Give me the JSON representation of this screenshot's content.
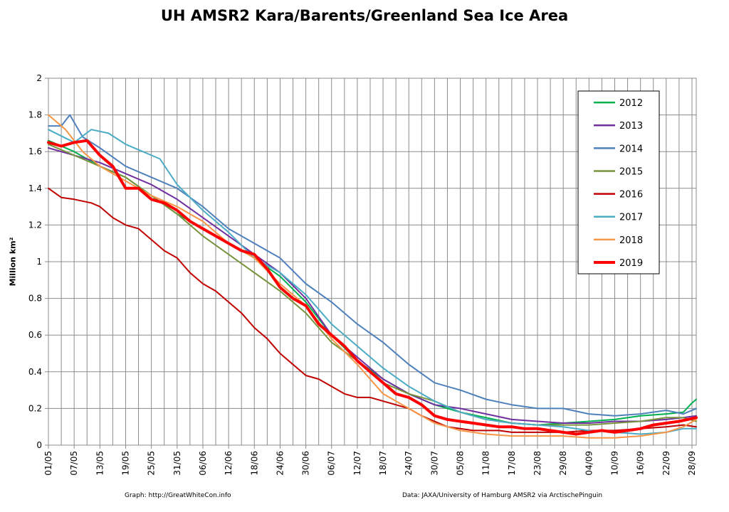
{
  "title": "UH AMSR2 Kara/Barents/Greenland Sea Ice Area",
  "footer_left": "Graph: http://GreatWhiteCon.info",
  "footer_right": "Data: JAXA/University of Hamburg AMSR2 via ArctischePinguin",
  "chart_data": {
    "type": "line",
    "title": "UH AMSR2 Kara/Barents/Greenland Sea Ice Area",
    "ylabel": "Million km²",
    "xlabel": "",
    "ylim": [
      0,
      2
    ],
    "yticks": [
      "0",
      "0.2",
      "0.4",
      "0.6",
      "0.8",
      "1",
      "1.2",
      "1.4",
      "1.6",
      "1.8",
      "2"
    ],
    "x_tick_labels": [
      "01/05",
      "07/05",
      "13/05",
      "19/05",
      "25/05",
      "31/05",
      "06/06",
      "12/06",
      "18/06",
      "24/06",
      "30/06",
      "06/07",
      "12/07",
      "18/07",
      "24/07",
      "30/07",
      "05/08",
      "11/08",
      "17/08",
      "23/08",
      "29/08",
      "04/09",
      "10/09",
      "16/09",
      "22/09",
      "28/09"
    ],
    "x_range_days": [
      0,
      151
    ],
    "grid": true,
    "legend_position": "top-right",
    "series": [
      {
        "name": "2012",
        "color": "#00b050",
        "width": 2,
        "points": [
          [
            0,
            1.66
          ],
          [
            6,
            1.6
          ],
          [
            12,
            1.52
          ],
          [
            18,
            1.46
          ],
          [
            24,
            1.36
          ],
          [
            30,
            1.26
          ],
          [
            36,
            1.18
          ],
          [
            42,
            1.1
          ],
          [
            48,
            1.02
          ],
          [
            54,
            0.92
          ],
          [
            60,
            0.78
          ],
          [
            66,
            0.6
          ],
          [
            72,
            0.46
          ],
          [
            78,
            0.36
          ],
          [
            84,
            0.28
          ],
          [
            90,
            0.22
          ],
          [
            96,
            0.18
          ],
          [
            102,
            0.15
          ],
          [
            108,
            0.12
          ],
          [
            114,
            0.11
          ],
          [
            120,
            0.12
          ],
          [
            126,
            0.13
          ],
          [
            132,
            0.14
          ],
          [
            138,
            0.16
          ],
          [
            144,
            0.17
          ],
          [
            148,
            0.18
          ],
          [
            150,
            0.23
          ],
          [
            151,
            0.25
          ]
        ]
      },
      {
        "name": "2013",
        "color": "#7030a0",
        "width": 2,
        "points": [
          [
            0,
            1.62
          ],
          [
            6,
            1.58
          ],
          [
            12,
            1.54
          ],
          [
            18,
            1.48
          ],
          [
            24,
            1.42
          ],
          [
            30,
            1.34
          ],
          [
            36,
            1.24
          ],
          [
            42,
            1.14
          ],
          [
            48,
            1.04
          ],
          [
            54,
            0.94
          ],
          [
            60,
            0.8
          ],
          [
            66,
            0.6
          ],
          [
            72,
            0.48
          ],
          [
            78,
            0.36
          ],
          [
            84,
            0.28
          ],
          [
            90,
            0.22
          ],
          [
            96,
            0.2
          ],
          [
            102,
            0.17
          ],
          [
            108,
            0.14
          ],
          [
            114,
            0.13
          ],
          [
            120,
            0.12
          ],
          [
            126,
            0.12
          ],
          [
            132,
            0.13
          ],
          [
            138,
            0.13
          ],
          [
            144,
            0.14
          ],
          [
            148,
            0.15
          ],
          [
            151,
            0.16
          ]
        ]
      },
      {
        "name": "2014",
        "color": "#4f81bd",
        "width": 2,
        "points": [
          [
            0,
            1.74
          ],
          [
            3,
            1.74
          ],
          [
            5,
            1.8
          ],
          [
            8,
            1.68
          ],
          [
            12,
            1.62
          ],
          [
            18,
            1.52
          ],
          [
            24,
            1.46
          ],
          [
            30,
            1.4
          ],
          [
            36,
            1.3
          ],
          [
            42,
            1.18
          ],
          [
            48,
            1.1
          ],
          [
            54,
            1.02
          ],
          [
            60,
            0.88
          ],
          [
            66,
            0.78
          ],
          [
            72,
            0.66
          ],
          [
            78,
            0.56
          ],
          [
            84,
            0.44
          ],
          [
            90,
            0.34
          ],
          [
            96,
            0.3
          ],
          [
            102,
            0.25
          ],
          [
            108,
            0.22
          ],
          [
            114,
            0.2
          ],
          [
            120,
            0.2
          ],
          [
            126,
            0.17
          ],
          [
            132,
            0.16
          ],
          [
            138,
            0.17
          ],
          [
            144,
            0.19
          ],
          [
            148,
            0.17
          ],
          [
            151,
            0.2
          ]
        ]
      },
      {
        "name": "2015",
        "color": "#77933c",
        "width": 2,
        "points": [
          [
            0,
            1.64
          ],
          [
            6,
            1.58
          ],
          [
            12,
            1.52
          ],
          [
            18,
            1.46
          ],
          [
            24,
            1.36
          ],
          [
            30,
            1.26
          ],
          [
            36,
            1.14
          ],
          [
            42,
            1.04
          ],
          [
            48,
            0.94
          ],
          [
            54,
            0.84
          ],
          [
            60,
            0.72
          ],
          [
            66,
            0.56
          ],
          [
            72,
            0.46
          ],
          [
            78,
            0.34
          ],
          [
            84,
            0.28
          ],
          [
            90,
            0.24
          ],
          [
            96,
            0.18
          ],
          [
            102,
            0.14
          ],
          [
            108,
            0.12
          ],
          [
            114,
            0.11
          ],
          [
            120,
            0.11
          ],
          [
            126,
            0.11
          ],
          [
            132,
            0.12
          ],
          [
            138,
            0.13
          ],
          [
            144,
            0.15
          ],
          [
            148,
            0.15
          ],
          [
            151,
            0.13
          ]
        ]
      },
      {
        "name": "2016",
        "color": "#c00000",
        "width": 2,
        "points": [
          [
            0,
            1.4
          ],
          [
            3,
            1.35
          ],
          [
            6,
            1.34
          ],
          [
            10,
            1.32
          ],
          [
            12,
            1.3
          ],
          [
            15,
            1.24
          ],
          [
            18,
            1.2
          ],
          [
            21,
            1.18
          ],
          [
            24,
            1.12
          ],
          [
            27,
            1.06
          ],
          [
            30,
            1.02
          ],
          [
            33,
            0.94
          ],
          [
            36,
            0.88
          ],
          [
            39,
            0.84
          ],
          [
            42,
            0.78
          ],
          [
            45,
            0.72
          ],
          [
            48,
            0.64
          ],
          [
            51,
            0.58
          ],
          [
            54,
            0.5
          ],
          [
            57,
            0.44
          ],
          [
            60,
            0.38
          ],
          [
            63,
            0.36
          ],
          [
            66,
            0.32
          ],
          [
            69,
            0.28
          ],
          [
            72,
            0.26
          ],
          [
            75,
            0.26
          ],
          [
            78,
            0.24
          ],
          [
            81,
            0.22
          ],
          [
            84,
            0.2
          ],
          [
            87,
            0.16
          ],
          [
            90,
            0.13
          ],
          [
            93,
            0.1
          ],
          [
            96,
            0.09
          ],
          [
            99,
            0.08
          ],
          [
            102,
            0.08
          ],
          [
            105,
            0.08
          ],
          [
            108,
            0.07
          ],
          [
            114,
            0.07
          ],
          [
            120,
            0.07
          ],
          [
            126,
            0.08
          ],
          [
            132,
            0.08
          ],
          [
            138,
            0.09
          ],
          [
            144,
            0.1
          ],
          [
            148,
            0.11
          ],
          [
            151,
            0.1
          ]
        ]
      },
      {
        "name": "2017",
        "color": "#4bacc6",
        "width": 2,
        "points": [
          [
            0,
            1.72
          ],
          [
            6,
            1.65
          ],
          [
            10,
            1.72
          ],
          [
            14,
            1.7
          ],
          [
            18,
            1.64
          ],
          [
            22,
            1.6
          ],
          [
            26,
            1.56
          ],
          [
            30,
            1.42
          ],
          [
            36,
            1.28
          ],
          [
            42,
            1.16
          ],
          [
            48,
            1.02
          ],
          [
            54,
            0.94
          ],
          [
            60,
            0.82
          ],
          [
            66,
            0.66
          ],
          [
            72,
            0.54
          ],
          [
            78,
            0.42
          ],
          [
            84,
            0.32
          ],
          [
            90,
            0.24
          ],
          [
            96,
            0.18
          ],
          [
            102,
            0.14
          ],
          [
            108,
            0.12
          ],
          [
            114,
            0.11
          ],
          [
            120,
            0.1
          ],
          [
            126,
            0.08
          ],
          [
            132,
            0.07
          ],
          [
            138,
            0.06
          ],
          [
            144,
            0.07
          ],
          [
            148,
            0.09
          ],
          [
            151,
            0.09
          ]
        ]
      },
      {
        "name": "2018",
        "color": "#f79646",
        "width": 2,
        "points": [
          [
            0,
            1.8
          ],
          [
            4,
            1.72
          ],
          [
            8,
            1.6
          ],
          [
            12,
            1.52
          ],
          [
            18,
            1.44
          ],
          [
            24,
            1.36
          ],
          [
            30,
            1.3
          ],
          [
            36,
            1.22
          ],
          [
            42,
            1.1
          ],
          [
            48,
            1.02
          ],
          [
            54,
            0.88
          ],
          [
            60,
            0.76
          ],
          [
            66,
            0.58
          ],
          [
            72,
            0.44
          ],
          [
            78,
            0.28
          ],
          [
            84,
            0.2
          ],
          [
            90,
            0.12
          ],
          [
            96,
            0.08
          ],
          [
            102,
            0.06
          ],
          [
            108,
            0.05
          ],
          [
            114,
            0.05
          ],
          [
            120,
            0.05
          ],
          [
            126,
            0.04
          ],
          [
            132,
            0.04
          ],
          [
            138,
            0.05
          ],
          [
            144,
            0.07
          ],
          [
            148,
            0.1
          ],
          [
            151,
            0.14
          ]
        ]
      },
      {
        "name": "2019",
        "color": "#ff0000",
        "width": 4,
        "points": [
          [
            0,
            1.65
          ],
          [
            3,
            1.63
          ],
          [
            6,
            1.65
          ],
          [
            9,
            1.66
          ],
          [
            12,
            1.58
          ],
          [
            15,
            1.52
          ],
          [
            18,
            1.4
          ],
          [
            21,
            1.4
          ],
          [
            24,
            1.34
          ],
          [
            27,
            1.32
          ],
          [
            30,
            1.28
          ],
          [
            33,
            1.22
          ],
          [
            36,
            1.18
          ],
          [
            39,
            1.14
          ],
          [
            42,
            1.1
          ],
          [
            45,
            1.06
          ],
          [
            48,
            1.04
          ],
          [
            51,
            0.96
          ],
          [
            54,
            0.86
          ],
          [
            57,
            0.8
          ],
          [
            60,
            0.76
          ],
          [
            63,
            0.66
          ],
          [
            66,
            0.6
          ],
          [
            69,
            0.54
          ],
          [
            72,
            0.46
          ],
          [
            75,
            0.4
          ],
          [
            78,
            0.34
          ],
          [
            81,
            0.28
          ],
          [
            84,
            0.26
          ],
          [
            87,
            0.22
          ],
          [
            90,
            0.16
          ],
          [
            93,
            0.14
          ],
          [
            96,
            0.13
          ],
          [
            99,
            0.12
          ],
          [
            102,
            0.11
          ],
          [
            105,
            0.1
          ],
          [
            108,
            0.1
          ],
          [
            111,
            0.09
          ],
          [
            114,
            0.09
          ],
          [
            117,
            0.08
          ],
          [
            120,
            0.07
          ],
          [
            123,
            0.06
          ],
          [
            126,
            0.07
          ],
          [
            129,
            0.08
          ],
          [
            132,
            0.07
          ],
          [
            135,
            0.08
          ],
          [
            138,
            0.09
          ],
          [
            141,
            0.11
          ],
          [
            144,
            0.12
          ],
          [
            147,
            0.13
          ],
          [
            151,
            0.15
          ]
        ]
      }
    ]
  }
}
